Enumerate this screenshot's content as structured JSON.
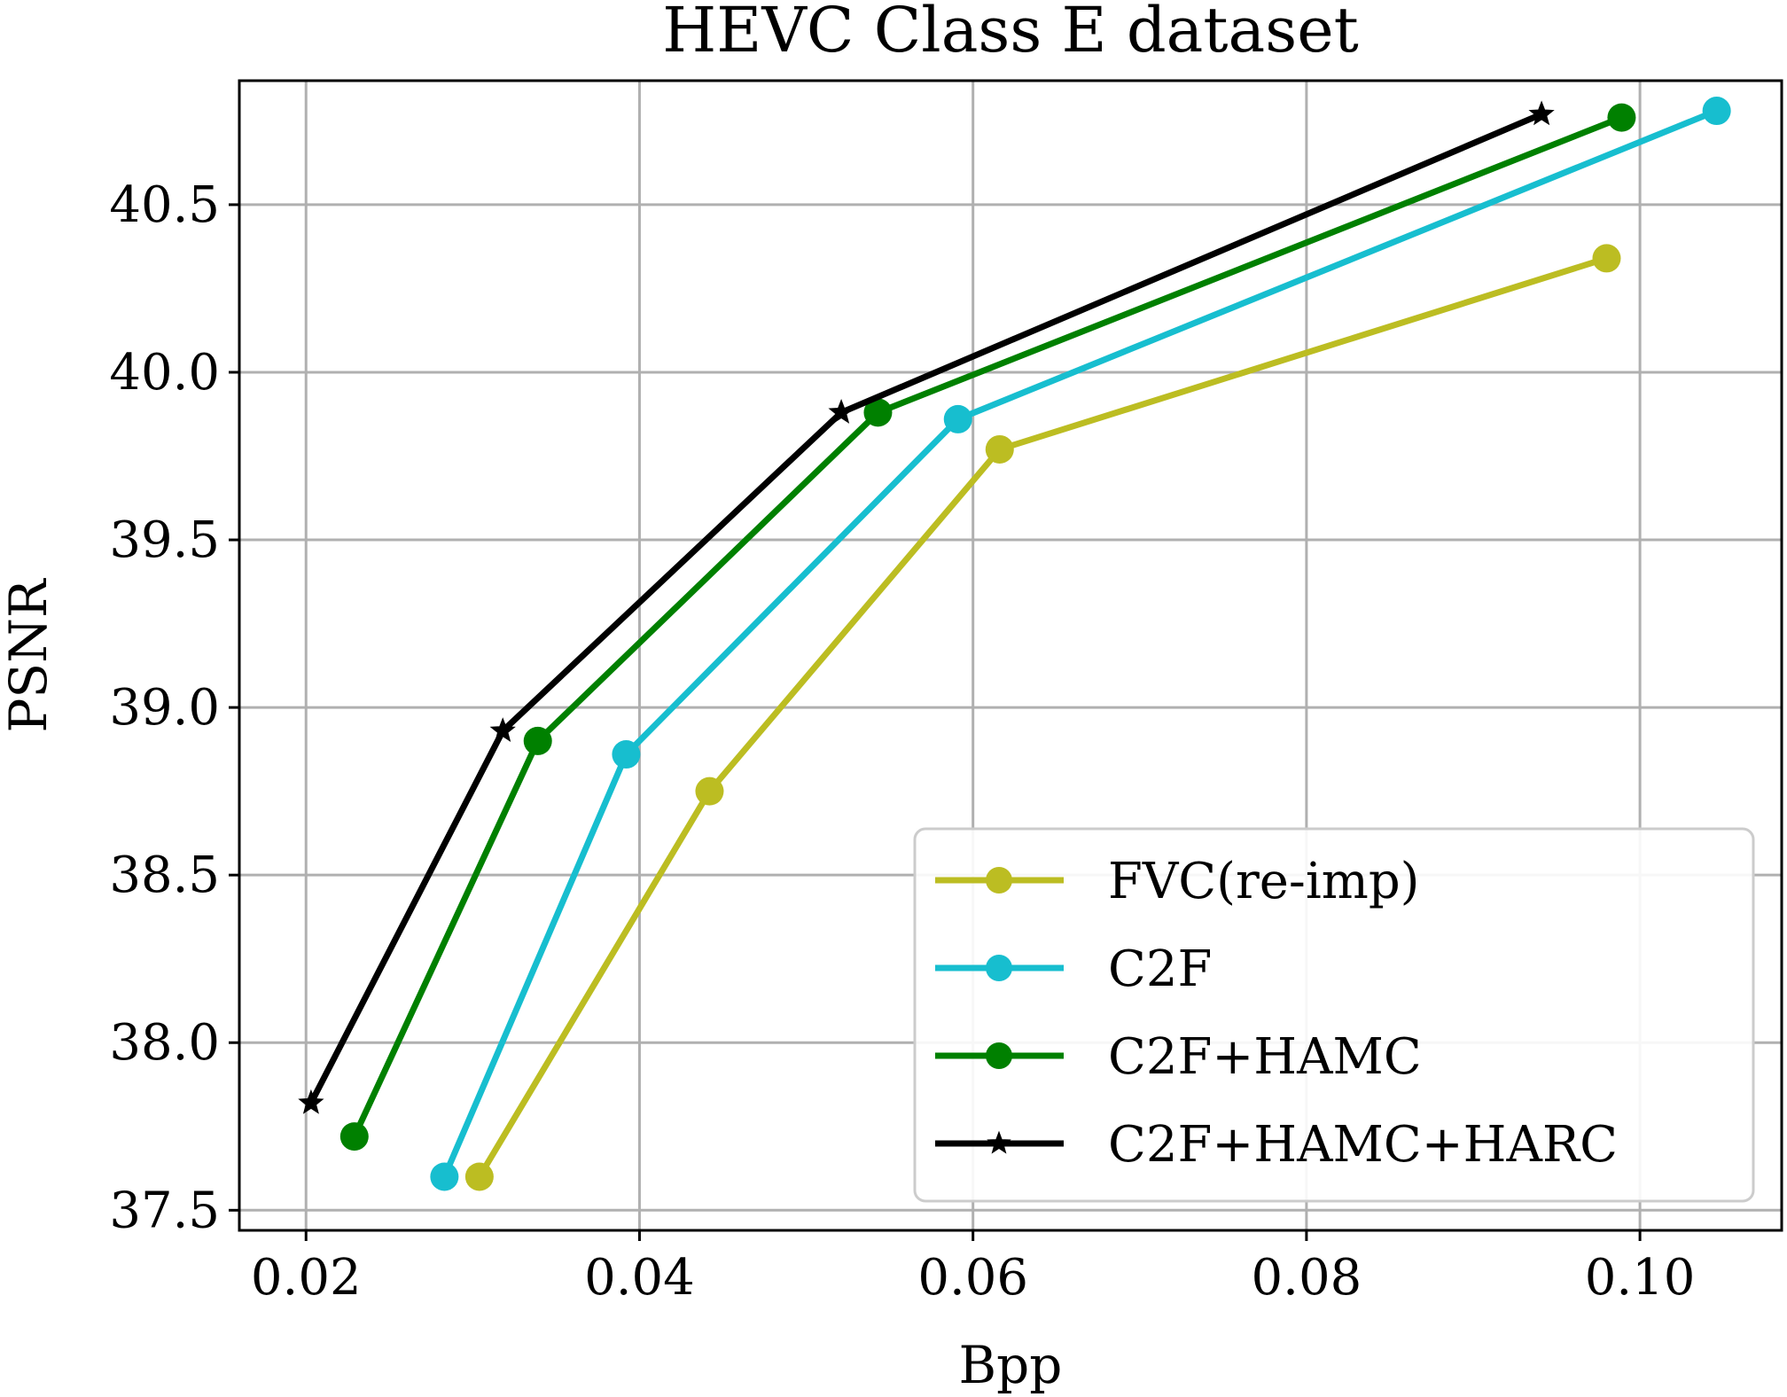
{
  "chart_data": {
    "type": "line",
    "title": "HEVC Class E dataset",
    "xlabel": "Bpp",
    "ylabel": "PSNR",
    "xlim": [
      0.016,
      0.1085
    ],
    "ylim": [
      37.44,
      40.87
    ],
    "xticks": [
      0.02,
      0.04,
      0.06,
      0.08,
      0.1
    ],
    "xtick_labels": [
      "0.02",
      "0.04",
      "0.06",
      "0.08",
      "0.10"
    ],
    "yticks": [
      37.5,
      38.0,
      38.5,
      39.0,
      39.5,
      40.0,
      40.5
    ],
    "ytick_labels": [
      "37.5",
      "38.0",
      "38.5",
      "39.0",
      "39.5",
      "40.0",
      "40.5"
    ],
    "grid": true,
    "legend_position": "lower right",
    "series": [
      {
        "name": "FVC(re-imp)",
        "color": "#bcbd22",
        "marker": "circle",
        "x": [
          0.0304,
          0.0442,
          0.0616,
          0.098
        ],
        "y": [
          37.6,
          38.75,
          39.77,
          40.34
        ]
      },
      {
        "name": "C2F",
        "color": "#17becf",
        "marker": "circle",
        "x": [
          0.0283,
          0.0392,
          0.0591,
          0.1046
        ],
        "y": [
          37.6,
          38.86,
          39.86,
          40.78
        ]
      },
      {
        "name": "C2F+HAMC",
        "color": "#008000",
        "marker": "circle",
        "x": [
          0.0229,
          0.0339,
          0.0543,
          0.0989
        ],
        "y": [
          37.72,
          38.9,
          39.88,
          40.76
        ]
      },
      {
        "name": "C2F+HAMC+HARC",
        "color": "#000000",
        "marker": "star",
        "x": [
          0.0203,
          0.0318,
          0.0521,
          0.0941
        ],
        "y": [
          37.82,
          38.93,
          39.88,
          40.77
        ]
      }
    ]
  }
}
